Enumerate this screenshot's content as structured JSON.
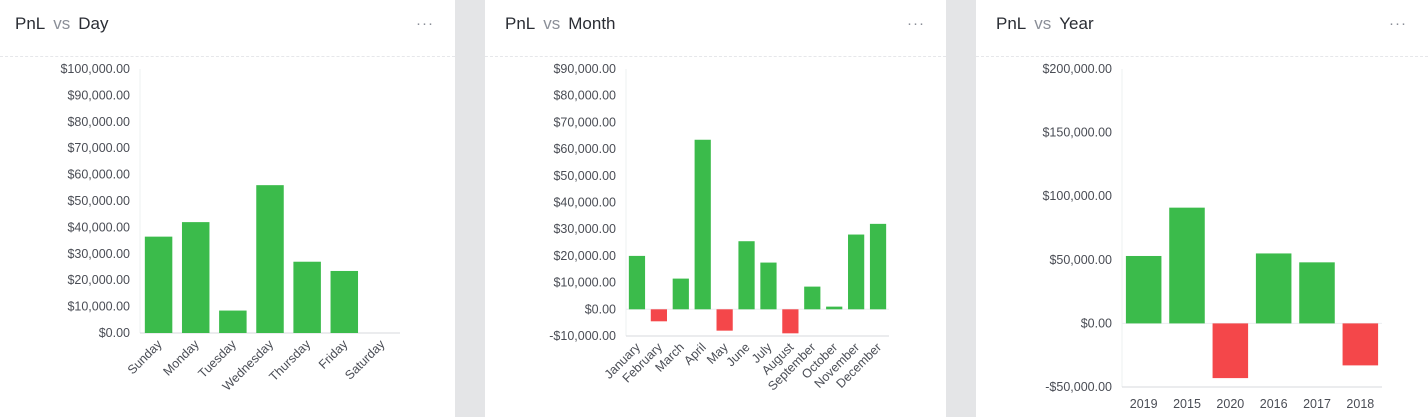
{
  "colors": {
    "positive": "#3bbb4b",
    "negative": "#f4474a",
    "axis": "#d7d9dd"
  },
  "icons": {
    "more": "more-horizontal-icon"
  },
  "cards": [
    {
      "title_prefix": "PnL",
      "vs": "vs",
      "title_suffix": "Day",
      "more": "···"
    },
    {
      "title_prefix": "PnL",
      "vs": "vs",
      "title_suffix": "Month",
      "more": "···"
    },
    {
      "title_prefix": "PnL",
      "vs": "vs",
      "title_suffix": "Year",
      "more": "···"
    }
  ],
  "chart_data": [
    {
      "type": "bar",
      "title": "PnL vs Day",
      "categories": [
        "Sunday",
        "Monday",
        "Tuesday",
        "Wednesday",
        "Thursday",
        "Friday",
        "Saturday"
      ],
      "values": [
        36500,
        42000,
        8500,
        56000,
        27000,
        23500,
        0
      ],
      "ylim": [
        0,
        100000
      ],
      "yticks": [
        0,
        10000,
        20000,
        30000,
        40000,
        50000,
        60000,
        70000,
        80000,
        90000,
        100000
      ],
      "ytick_labels": [
        "$0.00",
        "$10,000.00",
        "$20,000.00",
        "$30,000.00",
        "$40,000.00",
        "$50,000.00",
        "$60,000.00",
        "$70,000.00",
        "$80,000.00",
        "$90,000.00",
        "$100,000.00"
      ],
      "grid": false,
      "legend": "none"
    },
    {
      "type": "bar",
      "title": "PnL vs Month",
      "categories": [
        "January",
        "February",
        "March",
        "April",
        "May",
        "June",
        "July",
        "August",
        "September",
        "October",
        "November",
        "December"
      ],
      "values": [
        20000,
        -4500,
        11500,
        63500,
        -8000,
        25500,
        17500,
        -9000,
        8500,
        1000,
        28000,
        32000
      ],
      "ylim": [
        -10000,
        90000
      ],
      "yticks": [
        -10000,
        0,
        10000,
        20000,
        30000,
        40000,
        50000,
        60000,
        70000,
        80000,
        90000
      ],
      "ytick_labels": [
        "-$10,000.00",
        "$0.00",
        "$10,000.00",
        "$20,000.00",
        "$30,000.00",
        "$40,000.00",
        "$50,000.00",
        "$60,000.00",
        "$70,000.00",
        "$80,000.00",
        "$90,000.00"
      ],
      "grid": false,
      "legend": "none"
    },
    {
      "type": "bar",
      "title": "PnL vs Year",
      "categories": [
        "2019",
        "2015",
        "2020",
        "2016",
        "2017",
        "2018"
      ],
      "values": [
        53000,
        91000,
        -43000,
        55000,
        48000,
        -33000
      ],
      "ylim": [
        -50000,
        200000
      ],
      "yticks": [
        -50000,
        0,
        50000,
        100000,
        150000,
        200000
      ],
      "ytick_labels": [
        "-$50,000.00",
        "$0.00",
        "$50,000.00",
        "$100,000.00",
        "$150,000.00",
        "$200,000.00"
      ],
      "grid": false,
      "legend": "none"
    }
  ]
}
